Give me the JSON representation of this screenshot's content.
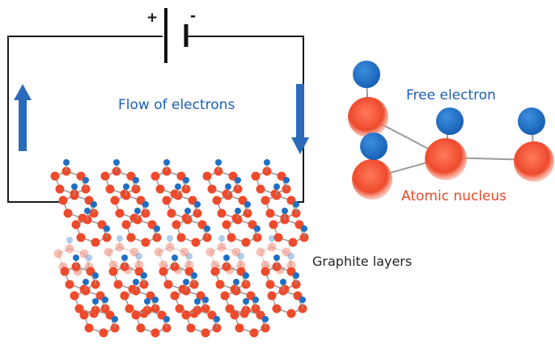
{
  "battery": {
    "plus_sign": "+",
    "minus_sign": "-"
  },
  "labels": {
    "flow": "Flow of electrons",
    "free_electron": "Free electron",
    "atomic_nucleus": "Atomic nucleus",
    "graphite_layers": "Graphite layers"
  },
  "colors": {
    "wire": "#1a1a1a",
    "arrow": "#2a6ab8",
    "electron": "#1f6fc4",
    "nucleus": "#ee4a2c",
    "bond": "#9a9a9a",
    "label_blue": "#1f5fb0",
    "label_red": "#e8472a"
  },
  "icons": [
    "up-arrow-icon",
    "down-arrow-icon",
    "battery-icon"
  ]
}
